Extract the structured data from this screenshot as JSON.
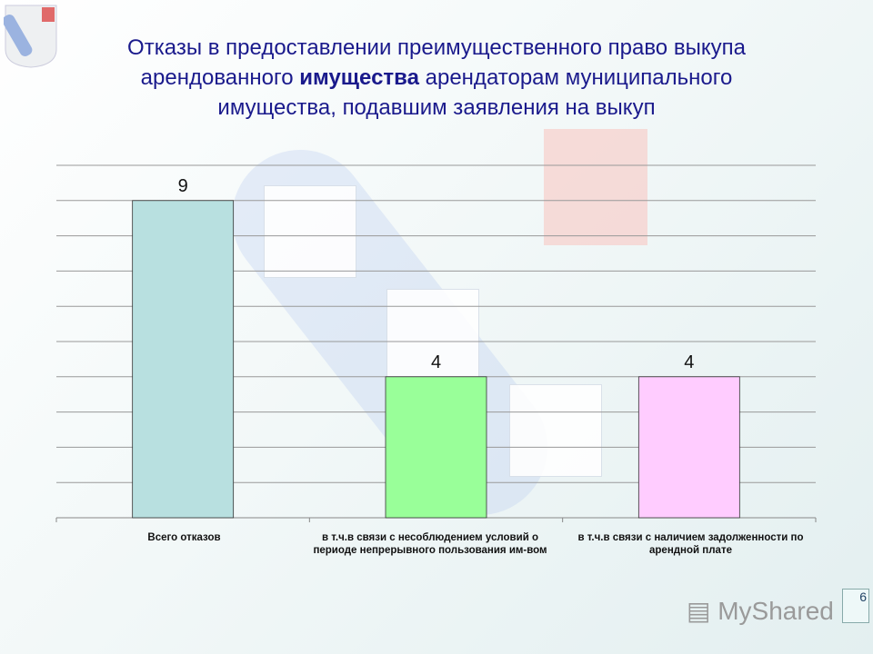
{
  "title": {
    "part1": "Отказы в предоставлении преимущественного право выкупа арендованного ",
    "bold": "имущества",
    "part2": " арендаторам муниципального имущества, подавшим заявления на выкуп"
  },
  "chart_data": {
    "type": "bar",
    "categories": [
      "Всего отказов",
      "в т.ч.в связи с несоблюдением условий о периоде непрерывного пользования им-вом",
      "в т.ч.в связи с наличием задолженности по арендной плате"
    ],
    "values": [
      9,
      4,
      4
    ],
    "data_labels": [
      "9",
      "4",
      "4"
    ],
    "colors": [
      "#b8e0e0",
      "#99ff99",
      "#ffccff"
    ],
    "ylim": [
      0,
      10
    ],
    "grid": true,
    "legend": "none"
  },
  "page_number": "6",
  "watermark": "MyShared"
}
